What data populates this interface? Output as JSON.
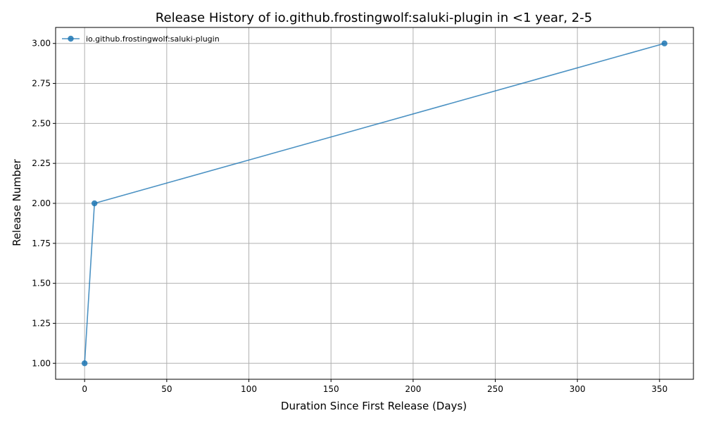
{
  "chart_data": {
    "type": "line",
    "title": "Release History of io.github.frostingwolf:saluki-plugin in <1 year, 2-5",
    "xlabel": "Duration Since First Release (Days)",
    "ylabel": "Release Number",
    "xlim": [
      -17.65,
      370.65
    ],
    "ylim": [
      0.9,
      3.1
    ],
    "x_ticks": [
      0,
      50,
      100,
      150,
      200,
      250,
      300,
      350
    ],
    "y_ticks": [
      1.0,
      1.25,
      1.5,
      1.75,
      2.0,
      2.25,
      2.5,
      2.75,
      3.0
    ],
    "x_tick_labels": [
      "0",
      "50",
      "100",
      "150",
      "200",
      "250",
      "300",
      "350"
    ],
    "y_tick_labels": [
      "1.00",
      "1.25",
      "1.50",
      "1.75",
      "2.00",
      "2.25",
      "2.50",
      "2.75",
      "3.00"
    ],
    "grid": true,
    "legend_position": "top-left",
    "series": [
      {
        "name": "io.github.frostingwolf:saluki-plugin",
        "color": "#1f77b4",
        "marker": "circle",
        "x": [
          0,
          6,
          353
        ],
        "y": [
          1,
          2,
          3
        ]
      }
    ]
  }
}
